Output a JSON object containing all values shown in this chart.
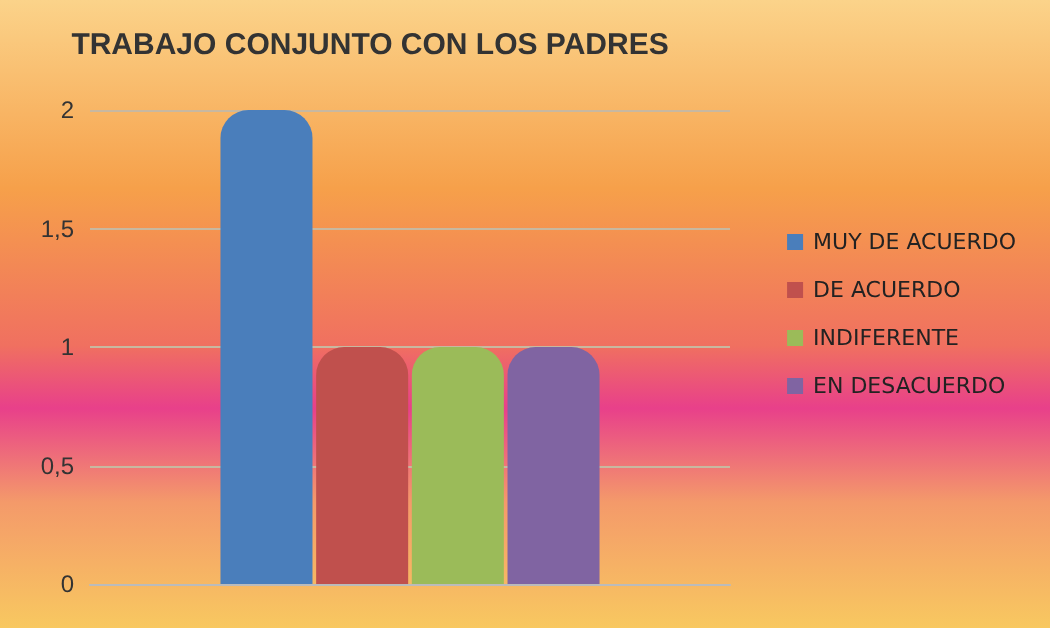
{
  "chart_data": {
    "type": "bar",
    "title": "TRABAJO CONJUNTO CON LOS PADRES",
    "categories": [
      null
    ],
    "series": [
      {
        "name": "MUY DE ACUERDO",
        "color": "#4a7ebb",
        "values": [
          2
        ]
      },
      {
        "name": "DE ACUERDO",
        "color": "#c0504d",
        "values": [
          1
        ]
      },
      {
        "name": "INDIFERENTE",
        "color": "#9bbb59",
        "values": [
          1
        ]
      },
      {
        "name": "EN DESACUERDO",
        "color": "#8064a2",
        "values": [
          1
        ]
      }
    ],
    "ylim": [
      0,
      2
    ],
    "yticks": [
      0,
      {
        "value": 0.5,
        "label": "0,5"
      },
      1,
      {
        "value": 1.5,
        "label": "1,5"
      },
      2
    ],
    "grid": "y",
    "legend": "right"
  }
}
